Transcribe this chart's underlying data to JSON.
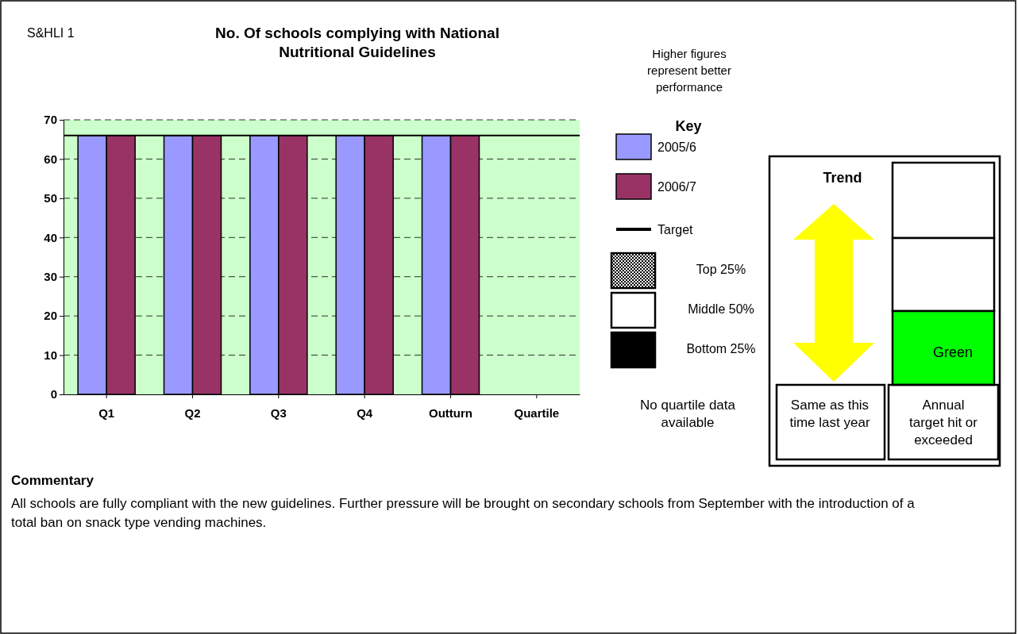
{
  "chart_data": {
    "type": "bar",
    "title": "No. Of schools complying with National Nutritional Guidelines",
    "categories": [
      "Q1",
      "Q2",
      "Q3",
      "Q4",
      "Outturn",
      "Quartile"
    ],
    "series": [
      {
        "name": "2005/6",
        "color": "#9999ff",
        "values": [
          66,
          66,
          66,
          66,
          66,
          null
        ]
      },
      {
        "name": "2006/7",
        "color": "#993366",
        "values": [
          66,
          66,
          66,
          66,
          66,
          null
        ]
      }
    ],
    "ylim": [
      0,
      70
    ],
    "yticks": [
      0,
      10,
      20,
      30,
      40,
      50,
      60,
      70
    ],
    "grid": "y",
    "legend": "right",
    "ref_lines": [
      {
        "axis": "y",
        "value": 66,
        "label": "Target",
        "color": "#000000"
      }
    ],
    "annotations": [
      "S&HLI 1",
      "Higher figures represent better performance",
      "Key",
      "Top 25%",
      "Middle 50%",
      "Bottom 25%",
      "No quartile data available",
      "Trend",
      "Green",
      "Same as this time last year",
      "Annual target hit or exceeded",
      "Commentary",
      "All schools are fully compliant with the new guidelines. Further pressure will be brought on secondary schools from September with the introduction of a total ban on snack type vending machines."
    ]
  }
}
